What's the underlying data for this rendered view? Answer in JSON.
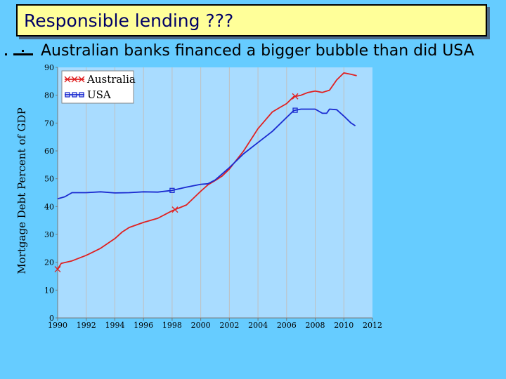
{
  "slide": {
    "title": "Responsible lending ???",
    "bullet": "Australian banks financed a bigger bubble than did USA"
  },
  "colors": {
    "background": "#66ccff",
    "title_box": "#ffff99",
    "title_text": "#000066",
    "australia": "#e02020",
    "usa": "#1a2ad0"
  },
  "chart_data": {
    "type": "line",
    "title": "",
    "xlabel": "",
    "ylabel": "Mortgage Debt Percent of GDP",
    "xlim": [
      1990,
      2012
    ],
    "ylim": [
      0,
      90
    ],
    "xticks": [
      "1990",
      "1992",
      "1994",
      "1996",
      "1998",
      "2000",
      "2002",
      "2004",
      "2006",
      "2008",
      "2010",
      "2012"
    ],
    "yticks": [
      "0",
      "10",
      "20",
      "30",
      "40",
      "50",
      "60",
      "70",
      "80",
      "90"
    ],
    "grid": "vertical",
    "legend_position": "top-left",
    "series": [
      {
        "name": "Australia",
        "marker": "x",
        "points": [
          [
            1990.0,
            17.5
          ],
          [
            1990.25,
            19.6
          ],
          [
            1991.0,
            20.5
          ],
          [
            1992.0,
            22.5
          ],
          [
            1993.0,
            25.0
          ],
          [
            1994.0,
            28.5
          ],
          [
            1994.5,
            30.8
          ],
          [
            1995.0,
            32.5
          ],
          [
            1995.5,
            33.4
          ],
          [
            1996.0,
            34.3
          ],
          [
            1997.0,
            35.8
          ],
          [
            1998.0,
            38.5
          ],
          [
            1999.0,
            40.6
          ],
          [
            2000.0,
            45.5
          ],
          [
            2000.5,
            47.8
          ],
          [
            2001.0,
            49.3
          ],
          [
            2001.5,
            51.0
          ],
          [
            2002.0,
            53.5
          ],
          [
            2003.0,
            60.0
          ],
          [
            2004.0,
            68.0
          ],
          [
            2004.5,
            71.0
          ],
          [
            2005.0,
            74.0
          ],
          [
            2005.5,
            75.5
          ],
          [
            2006.0,
            77.0
          ],
          [
            2006.5,
            79.5
          ],
          [
            2007.0,
            80.0
          ],
          [
            2007.5,
            81.0
          ],
          [
            2008.0,
            81.5
          ],
          [
            2008.5,
            81.0
          ],
          [
            2009.0,
            81.8
          ],
          [
            2009.5,
            85.5
          ],
          [
            2010.0,
            88.0
          ],
          [
            2010.5,
            87.5
          ],
          [
            2010.9,
            87.0
          ]
        ]
      },
      {
        "name": "USA",
        "marker": "square",
        "points": [
          [
            1990.0,
            42.8
          ],
          [
            1990.5,
            43.5
          ],
          [
            1991.0,
            45.0
          ],
          [
            1992.0,
            45.0
          ],
          [
            1993.0,
            45.3
          ],
          [
            1994.0,
            44.9
          ],
          [
            1995.0,
            45.0
          ],
          [
            1996.0,
            45.3
          ],
          [
            1997.0,
            45.2
          ],
          [
            1998.0,
            45.8
          ],
          [
            1999.0,
            47.0
          ],
          [
            2000.0,
            48.0
          ],
          [
            2000.5,
            48.2
          ],
          [
            2001.0,
            49.5
          ],
          [
            2002.0,
            54.0
          ],
          [
            2003.0,
            59.0
          ],
          [
            2004.0,
            63.0
          ],
          [
            2005.0,
            67.0
          ],
          [
            2006.0,
            72.0
          ],
          [
            2006.5,
            74.5
          ],
          [
            2007.0,
            75.0
          ],
          [
            2008.0,
            75.0
          ],
          [
            2008.5,
            73.5
          ],
          [
            2008.8,
            73.5
          ],
          [
            2009.0,
            75.0
          ],
          [
            2009.5,
            74.8
          ],
          [
            2010.0,
            72.5
          ],
          [
            2010.5,
            70.0
          ],
          [
            2010.8,
            69.0
          ]
        ]
      }
    ]
  }
}
